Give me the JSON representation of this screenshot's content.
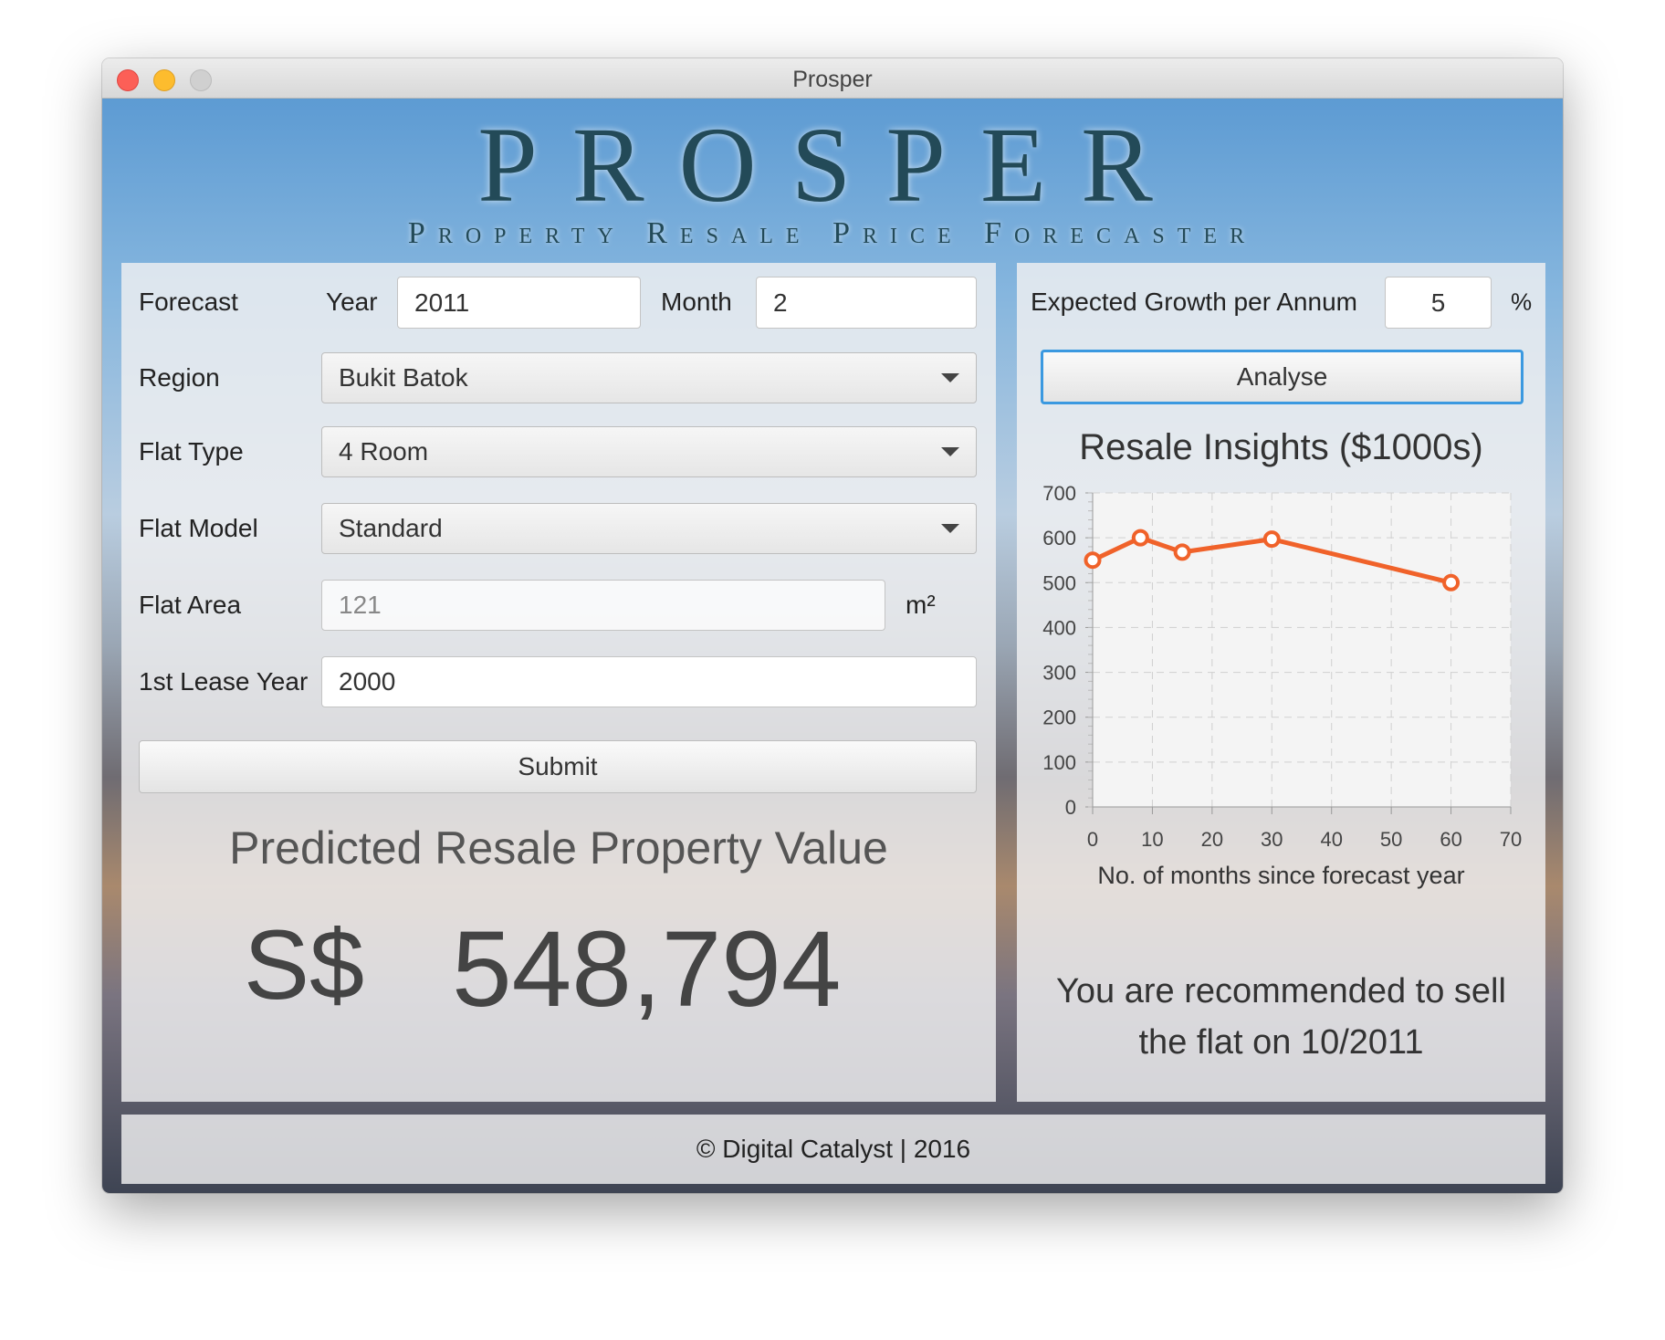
{
  "window": {
    "title": "Prosper"
  },
  "header": {
    "logo": "PROSPER",
    "subtitle": "Property Resale Price Forecaster"
  },
  "form": {
    "forecast_label": "Forecast",
    "year_label": "Year",
    "year_value": "2011",
    "month_label": "Month",
    "month_value": "2",
    "region_label": "Region",
    "region_value": "Bukit Batok",
    "flat_type_label": "Flat Type",
    "flat_type_value": "4 Room",
    "flat_model_label": "Flat Model",
    "flat_model_value": "Standard",
    "flat_area_label": "Flat Area",
    "flat_area_value": "121",
    "flat_area_unit": "m²",
    "lease_year_label": "1st Lease Year",
    "lease_year_value": "2000",
    "submit_label": "Submit"
  },
  "result": {
    "title": "Predicted Resale Property Value",
    "currency": "S$",
    "value": "548,794"
  },
  "analysis": {
    "growth_label": "Expected Growth per Annum",
    "growth_value": "5",
    "growth_unit": "%",
    "analyse_label": "Analyse",
    "recommendation_line1": "You are recommended to sell",
    "recommendation_line2": "the flat on 10/2011"
  },
  "chart_data": {
    "type": "line",
    "title": "Resale Insights ($1000s)",
    "xlabel": "No. of months since forecast year",
    "ylabel": "",
    "xlim": [
      0,
      70
    ],
    "ylim": [
      0,
      700
    ],
    "xticks": [
      "0",
      "10",
      "20",
      "30",
      "40",
      "50",
      "60",
      "70"
    ],
    "yticks": [
      "0",
      "100",
      "200",
      "300",
      "400",
      "500",
      "600",
      "700"
    ],
    "grid": true,
    "series": [
      {
        "x": [
          0,
          8,
          15,
          30,
          60
        ],
        "y": [
          550,
          600,
          568,
          597,
          500
        ],
        "color": "#f0622a"
      }
    ]
  },
  "footer": {
    "text": "© Digital Catalyst | 2016"
  }
}
